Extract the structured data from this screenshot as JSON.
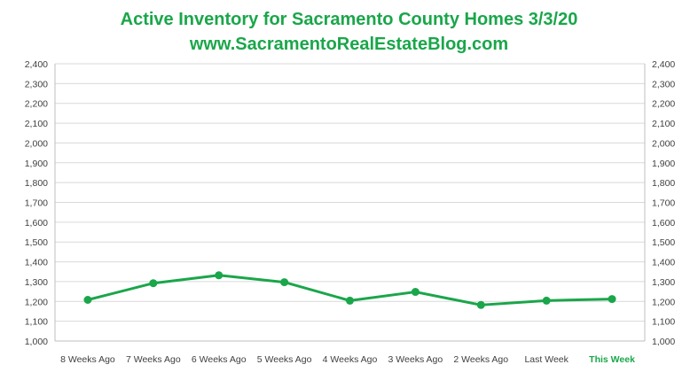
{
  "chart_data": {
    "type": "line",
    "title": "Active Inventory for Sacramento County Homes 3/3/20",
    "subtitle": "www.SacramentoRealEstateBlog.com",
    "categories": [
      "8 Weeks Ago",
      "7 Weeks Ago",
      "6 Weeks Ago",
      "5 Weeks Ago",
      "4 Weeks Ago",
      "3 Weeks Ago",
      "2 Weeks Ago",
      "Last Week",
      "This Week"
    ],
    "highlight_category": "This Week",
    "series": [
      {
        "values": [
          1208,
          1292,
          1332,
          1297,
          1204,
          1248,
          1182,
          1204,
          1212
        ],
        "color": "#1aa64a"
      }
    ],
    "ylim": [
      1000,
      2400
    ],
    "ytick_step": 100,
    "y_tick_labels": [
      "1,000",
      "1,100",
      "1,200",
      "1,300",
      "1,400",
      "1,500",
      "1,600",
      "1,700",
      "1,800",
      "1,900",
      "2,000",
      "2,100",
      "2,200",
      "2,300",
      "2,400"
    ],
    "dual_y_axis": true,
    "grid": true,
    "legend": "none",
    "colors": {
      "line": "#1aa64a",
      "grid": "#d9d9d9",
      "axis_text": "#404040",
      "highlight_label": "#1aa64a"
    }
  }
}
